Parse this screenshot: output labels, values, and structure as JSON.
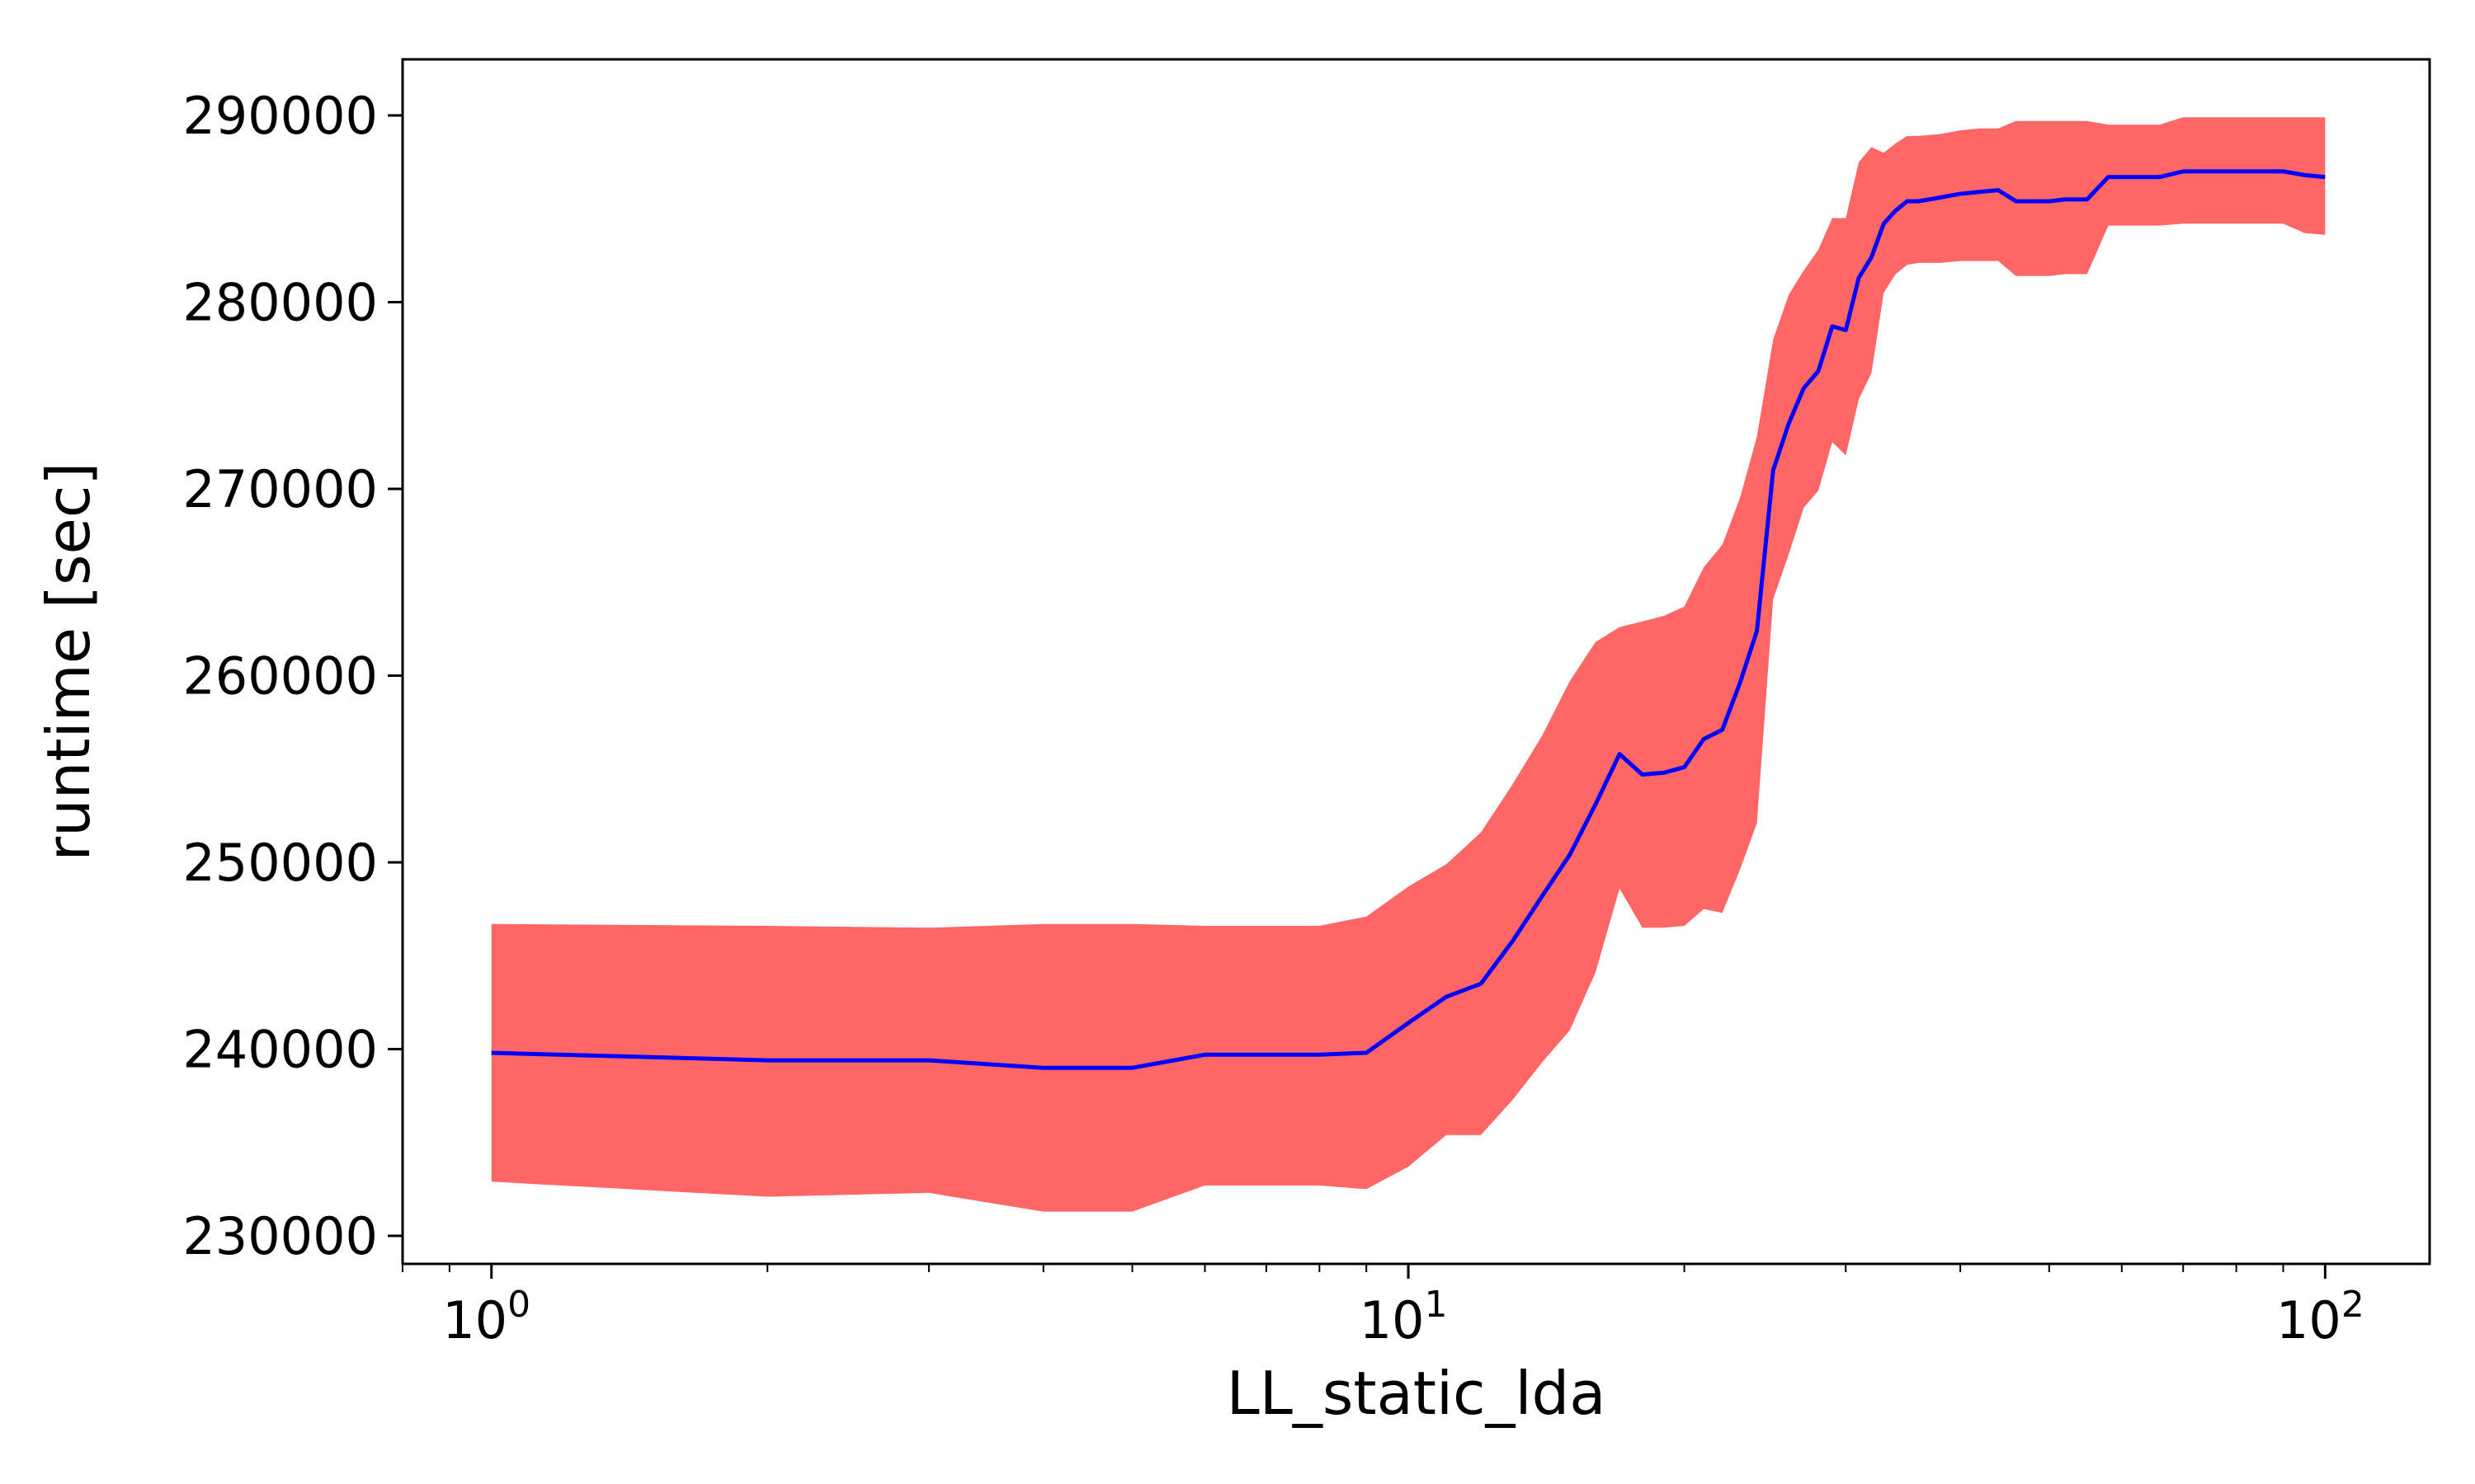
{
  "chart_data": {
    "type": "line",
    "xlabel": "LL_static_lda",
    "ylabel": "runtime [sec]",
    "xscale": "log",
    "xlim": [
      0.8,
      130
    ],
    "ylim": [
      228500,
      293000
    ],
    "grid": false,
    "x_ticks": [
      {
        "value": 1,
        "base": "10",
        "exp": "0"
      },
      {
        "value": 10,
        "base": "10",
        "exp": "1"
      },
      {
        "value": 100,
        "base": "10",
        "exp": "2"
      }
    ],
    "y_ticks": [
      230000,
      240000,
      250000,
      260000,
      270000,
      280000,
      290000
    ],
    "colors": {
      "line": "#0000ff",
      "band": "#ff6666"
    },
    "series": [
      {
        "x": [
          1,
          2,
          3,
          4,
          5,
          6,
          7,
          8,
          9,
          10,
          11,
          12,
          13,
          14,
          15,
          16,
          17,
          18,
          19,
          20,
          21,
          22,
          23,
          24,
          25,
          26,
          27,
          28,
          29,
          30,
          31,
          32,
          33,
          34,
          35,
          36,
          38,
          40,
          42,
          44,
          46,
          48,
          50,
          52,
          55,
          58,
          62,
          66,
          70,
          75,
          80,
          85,
          90,
          95,
          100
        ],
        "y": [
          239800,
          239400,
          239400,
          239000,
          239000,
          239700,
          239700,
          239700,
          239800,
          241400,
          242800,
          243500,
          245800,
          248200,
          250400,
          253100,
          255800,
          254700,
          254800,
          255100,
          256600,
          257100,
          259600,
          262400,
          271000,
          273500,
          275400,
          276300,
          278700,
          278500,
          281300,
          282400,
          284200,
          284900,
          285400,
          285400,
          285600,
          285800,
          285900,
          286000,
          285400,
          285400,
          285400,
          285500,
          285500,
          286700,
          286700,
          286700,
          287000,
          287000,
          287000,
          287000,
          287000,
          286800,
          286700
        ],
        "lower": [
          232900,
          232100,
          232300,
          231300,
          231300,
          232700,
          232700,
          232700,
          232500,
          233700,
          235400,
          235400,
          237300,
          239300,
          241000,
          244100,
          248600,
          246500,
          246500,
          246600,
          247500,
          247300,
          249600,
          252100,
          264100,
          266500,
          269000,
          269900,
          272500,
          271800,
          274800,
          276200,
          280500,
          281500,
          282000,
          282100,
          282100,
          282200,
          282200,
          282200,
          281400,
          281400,
          281400,
          281500,
          281500,
          284100,
          284100,
          284100,
          284200,
          284200,
          284200,
          284200,
          284200,
          283700,
          283600
        ],
        "upper": [
          246700,
          246600,
          246500,
          246700,
          246700,
          246600,
          246600,
          246600,
          247100,
          248700,
          249900,
          251600,
          254200,
          256800,
          259700,
          261800,
          262600,
          262900,
          263200,
          263700,
          265800,
          267000,
          269500,
          272800,
          278000,
          280400,
          281700,
          282800,
          284500,
          284500,
          287500,
          288300,
          288000,
          288500,
          288900,
          288900,
          289000,
          289200,
          289300,
          289300,
          289700,
          289700,
          289700,
          289700,
          289700,
          289500,
          289500,
          289500,
          289900,
          289900,
          289900,
          289900,
          289900,
          289900,
          289900
        ]
      }
    ]
  }
}
